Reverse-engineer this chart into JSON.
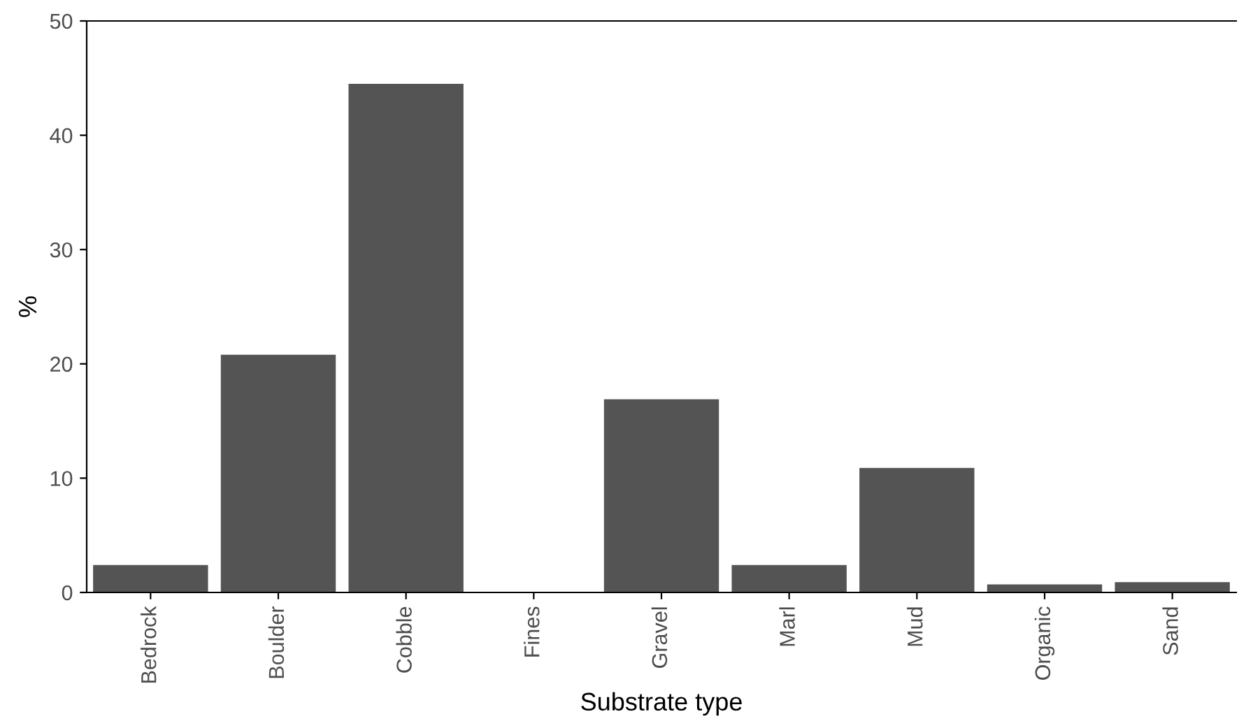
{
  "chart_data": {
    "type": "bar",
    "xlabel": "Substrate type",
    "ylabel": "%",
    "categories": [
      "Bedrock",
      "Boulder",
      "Cobble",
      "Fines",
      "Gravel",
      "Marl",
      "Mud",
      "Organic",
      "Sand"
    ],
    "values": [
      2.4,
      20.8,
      44.5,
      0,
      16.9,
      2.4,
      10.9,
      0.7,
      0.9
    ],
    "color": "#545454",
    "ylim": [
      0,
      50
    ],
    "yticks": [
      0,
      10,
      20,
      30,
      40,
      50
    ],
    "grid": false,
    "legend": false
  }
}
